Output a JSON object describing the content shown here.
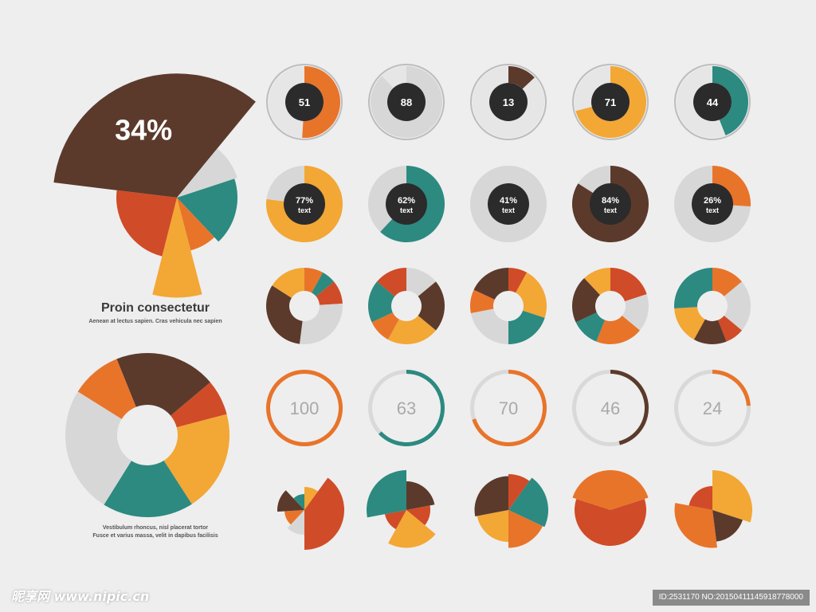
{
  "colors": {
    "brown": "#5b3a2c",
    "orange": "#e8742a",
    "red": "#d04b27",
    "yellow": "#f3a735",
    "teal": "#2c8a80",
    "gray": "#d7d7d7",
    "dark": "#2b2b2b",
    "ring": "#bdbdbd",
    "background": "#eeeeee"
  },
  "chart_data": [
    {
      "id": "featured-pie",
      "type": "pie",
      "title": "",
      "callout": "34%",
      "highlight_value": 34,
      "slices": [
        {
          "color": "brown",
          "percent": 34
        },
        {
          "color": "gray",
          "percent": 9
        },
        {
          "color": "teal",
          "percent": 18
        },
        {
          "color": "orange",
          "percent": 8
        },
        {
          "color": "yellow",
          "percent": 8
        },
        {
          "color": "red",
          "percent": 23
        }
      ]
    },
    {
      "id": "numbered-donuts",
      "type": "donut",
      "items": [
        {
          "label": "51",
          "value": 51,
          "color": "orange"
        },
        {
          "label": "88",
          "value": 88,
          "color": "gray"
        },
        {
          "label": "13",
          "value": 13,
          "color": "brown"
        },
        {
          "label": "71",
          "value": 71,
          "color": "yellow"
        },
        {
          "label": "44",
          "value": 44,
          "color": "teal"
        }
      ]
    },
    {
      "id": "percent-donuts",
      "type": "donut",
      "items": [
        {
          "label": "77%",
          "sublabel": "text",
          "value": 77,
          "color": "yellow"
        },
        {
          "label": "62%",
          "sublabel": "text",
          "value": 62,
          "color": "teal"
        },
        {
          "label": "41%",
          "sublabel": "text",
          "value": 41,
          "color": "gray"
        },
        {
          "label": "84%",
          "sublabel": "text",
          "value": 84,
          "color": "brown"
        },
        {
          "label": "26%",
          "sublabel": "text",
          "value": 26,
          "color": "orange"
        }
      ]
    },
    {
      "id": "segmented-donuts",
      "type": "donut",
      "items": [
        {
          "slices": [
            {
              "color": "orange",
              "percent": 8
            },
            {
              "color": "teal",
              "percent": 6
            },
            {
              "color": "red",
              "percent": 10
            },
            {
              "color": "gray",
              "percent": 28
            },
            {
              "color": "brown",
              "percent": 32
            },
            {
              "color": "yellow",
              "percent": 16
            }
          ]
        },
        {
          "slices": [
            {
              "color": "gray",
              "percent": 14
            },
            {
              "color": "brown",
              "percent": 22
            },
            {
              "color": "yellow",
              "percent": 22
            },
            {
              "color": "orange",
              "percent": 10
            },
            {
              "color": "teal",
              "percent": 18
            },
            {
              "color": "red",
              "percent": 14
            }
          ]
        },
        {
          "slices": [
            {
              "color": "red",
              "percent": 8
            },
            {
              "color": "yellow",
              "percent": 22
            },
            {
              "color": "teal",
              "percent": 20
            },
            {
              "color": "gray",
              "percent": 22
            },
            {
              "color": "orange",
              "percent": 10
            },
            {
              "color": "brown",
              "percent": 18
            }
          ]
        },
        {
          "slices": [
            {
              "color": "red",
              "percent": 20
            },
            {
              "color": "gray",
              "percent": 16
            },
            {
              "color": "orange",
              "percent": 20
            },
            {
              "color": "teal",
              "percent": 12
            },
            {
              "color": "brown",
              "percent": 20
            },
            {
              "color": "yellow",
              "percent": 12
            }
          ]
        },
        {
          "slices": [
            {
              "color": "orange",
              "percent": 14
            },
            {
              "color": "gray",
              "percent": 22
            },
            {
              "color": "red",
              "percent": 8
            },
            {
              "color": "brown",
              "percent": 14
            },
            {
              "color": "yellow",
              "percent": 16
            },
            {
              "color": "teal",
              "percent": 26
            }
          ]
        }
      ]
    },
    {
      "id": "progress-rings",
      "type": "donut",
      "items": [
        {
          "label": "100",
          "value": 100,
          "color": "orange"
        },
        {
          "label": "63",
          "value": 63,
          "color": "teal"
        },
        {
          "label": "70",
          "value": 70,
          "color": "orange"
        },
        {
          "label": "46",
          "value": 46,
          "color": "brown"
        },
        {
          "label": "24",
          "value": 24,
          "color": "orange"
        }
      ]
    },
    {
      "id": "exploded-pies",
      "type": "pie",
      "items": [
        {
          "slices": [
            {
              "color": "yellow",
              "percent": 10,
              "radius": 0.58
            },
            {
              "color": "red",
              "percent": 40,
              "radius": 1.0
            },
            {
              "color": "gray",
              "percent": 12,
              "radius": 0.62
            },
            {
              "color": "orange",
              "percent": 12,
              "radius": 0.5
            },
            {
              "color": "brown",
              "percent": 14,
              "radius": 0.68
            },
            {
              "color": "teal",
              "percent": 12,
              "radius": 0.4
            }
          ]
        },
        {
          "slices": [
            {
              "color": "brown",
              "percent": 22,
              "radius": 0.72
            },
            {
              "color": "red",
              "percent": 14,
              "radius": 0.6
            },
            {
              "color": "yellow",
              "percent": 22,
              "radius": 0.95
            },
            {
              "color": "red",
              "percent": 14,
              "radius": 0.55
            },
            {
              "color": "teal",
              "percent": 28,
              "radius": 1.0
            }
          ]
        },
        {
          "slices": [
            {
              "color": "red",
              "percent": 10,
              "radius": 0.9
            },
            {
              "color": "teal",
              "percent": 22,
              "radius": 1.0
            },
            {
              "color": "orange",
              "percent": 18,
              "radius": 0.95
            },
            {
              "color": "yellow",
              "percent": 22,
              "radius": 0.8
            },
            {
              "color": "brown",
              "percent": 28,
              "radius": 0.85
            }
          ]
        },
        {
          "slices": [
            {
              "color": "orange",
              "percent": 40,
              "radius": 1.0
            },
            {
              "color": "red",
              "percent": 60,
              "radius": 0.9
            }
          ]
        },
        {
          "slices": [
            {
              "color": "yellow",
              "percent": 30,
              "radius": 1.0
            },
            {
              "color": "brown",
              "percent": 18,
              "radius": 0.8
            },
            {
              "color": "orange",
              "percent": 30,
              "radius": 0.95
            },
            {
              "color": "red",
              "percent": 22,
              "radius": 0.6
            }
          ]
        }
      ]
    },
    {
      "id": "large-donut",
      "type": "donut",
      "slices": [
        {
          "color": "brown",
          "percent": 20
        },
        {
          "color": "red",
          "percent": 7
        },
        {
          "color": "yellow",
          "percent": 20
        },
        {
          "color": "teal",
          "percent": 18
        },
        {
          "color": "gray",
          "percent": 25
        },
        {
          "color": "orange",
          "percent": 10
        }
      ]
    }
  ],
  "captions": {
    "featured_title": "Proin consectetur",
    "featured_subtitle": "Aenean at lectus sapien. Cras vehicula nec sapien",
    "donut_caption_line1": "Vestibulum rhoncus, nisl placerat tortor",
    "donut_caption_line2": "Fusce et varius massa, velit in dapibus facilisis"
  },
  "watermark": "昵享网 www.nipic.cn",
  "badge": "ID:2531170 NO:20150411145918778000"
}
